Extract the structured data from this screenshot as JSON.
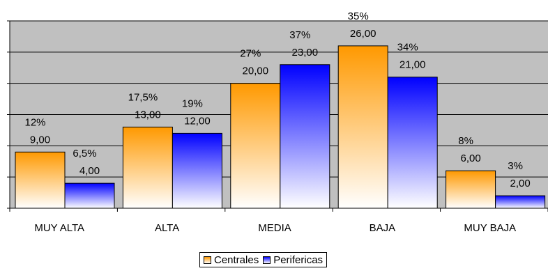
{
  "chart_data": {
    "type": "bar",
    "categories": [
      "MUY ALTA",
      "ALTA",
      "MEDIA",
      "BAJA",
      "MUY BAJA"
    ],
    "series": [
      {
        "name": "Centrales",
        "values": [
          9.0,
          13.0,
          20.0,
          26.0,
          6.0
        ],
        "value_labels": [
          "9,00",
          "13,00",
          "20,00",
          "26,00",
          "6,00"
        ],
        "percent_labels": [
          "12%",
          "17,5%",
          "27%",
          "35%",
          "8%"
        ]
      },
      {
        "name": "Perifericas",
        "values": [
          4.0,
          12.0,
          23.0,
          21.0,
          2.0
        ],
        "value_labels": [
          "4,00",
          "12,00",
          "23,00",
          "21,00",
          "2,00"
        ],
        "percent_labels": [
          "6,5%",
          "19%",
          "37%",
          "34%",
          "3%"
        ]
      }
    ],
    "ylim": [
      0,
      30
    ],
    "grid": true,
    "legend_position": "bottom",
    "colors": {
      "plot_background": "#c0c0c0",
      "centrales_top": "#ff9900",
      "centrales_bottom": "#ffffff",
      "perifericas_top": "#0000ff",
      "perifericas_bottom": "#ffffff"
    }
  }
}
